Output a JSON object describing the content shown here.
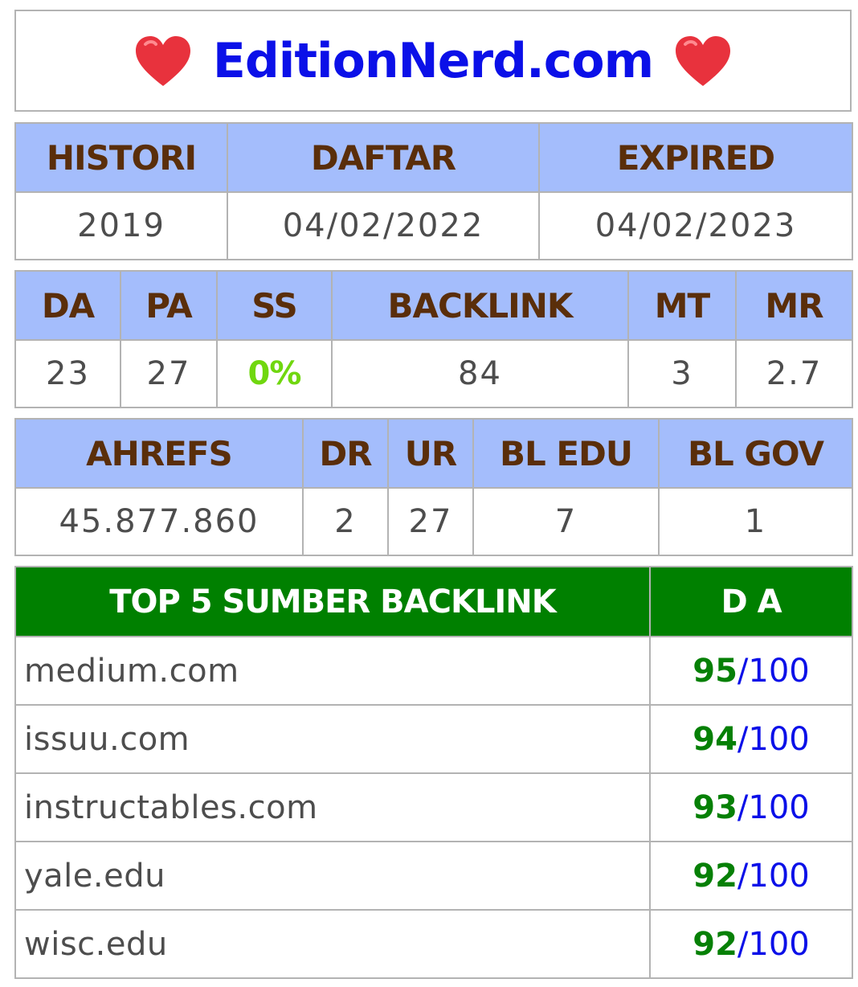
{
  "title": "EditionNerd.com",
  "heart_color": "#e8323d",
  "domain_info": {
    "headers": [
      "HISTORI",
      "DAFTAR",
      "EXPIRED"
    ],
    "values": [
      "2019",
      "04/02/2022",
      "04/02/2023"
    ]
  },
  "moz": {
    "headers": [
      "DA",
      "PA",
      "SS",
      "BACKLINK",
      "MT",
      "MR"
    ],
    "values": [
      "23",
      "27",
      "0%",
      "84",
      "3",
      "2.7"
    ]
  },
  "ahrefs": {
    "headers": [
      "AHREFS",
      "DR",
      "UR",
      "BL EDU",
      "BL GOV"
    ],
    "values": [
      "45.877.860",
      "2",
      "27",
      "7",
      "1"
    ]
  },
  "top_backlinks": {
    "header_source": "TOP 5 SUMBER BACKLINK",
    "header_da": "D A",
    "rows": [
      {
        "site": "medium.com",
        "score": "95",
        "out_of": "/100"
      },
      {
        "site": "issuu.com",
        "score": "94",
        "out_of": "/100"
      },
      {
        "site": "instructables.com",
        "score": "93",
        "out_of": "/100"
      },
      {
        "site": "yale.edu",
        "score": "92",
        "out_of": "/100"
      },
      {
        "site": "wisc.edu",
        "score": "92",
        "out_of": "/100"
      }
    ]
  }
}
